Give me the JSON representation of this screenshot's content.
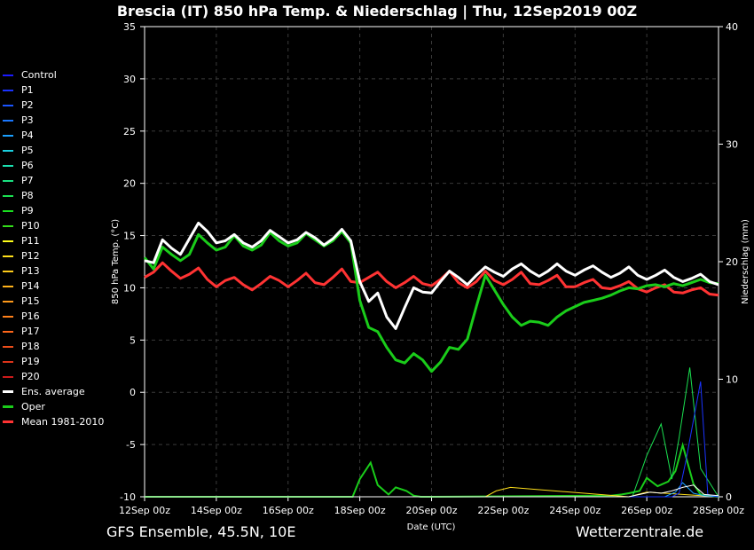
{
  "title": "Brescia  (IT)  850 hPa Temp. & Niederschlag | Thu, 12Sep2019 00Z",
  "footer": {
    "left": "GFS Ensemble, 45.5N, 10E",
    "right": "Wetterzentrale.de"
  },
  "chart_data": {
    "type": "line",
    "title": "Brescia  (IT)  850 hPa Temp. & Niederschlag | Thu, 12Sep2019 00Z",
    "xlabel": "Date (UTC)",
    "ylabel": "850 hPa Temp. (°C)",
    "y2label": "Niederschlag (mm)",
    "xlim": [
      0,
      16
    ],
    "ylim": [
      -10,
      35
    ],
    "y2lim": [
      0,
      40
    ],
    "grid": true,
    "legend_position": "left",
    "x_ticks": [
      {
        "value": 0,
        "label": "12Sep 00z"
      },
      {
        "value": 2,
        "label": "14Sep 00z"
      },
      {
        "value": 4,
        "label": "16Sep 00z"
      },
      {
        "value": 6,
        "label": "18Sep 00z"
      },
      {
        "value": 8,
        "label": "20Sep 00z"
      },
      {
        "value": 10,
        "label": "22Sep 00z"
      },
      {
        "value": 12,
        "label": "24Sep 00z"
      },
      {
        "value": 14,
        "label": "26Sep 00z"
      },
      {
        "value": 16,
        "label": "28Sep 00z"
      }
    ],
    "y_ticks": [
      -10,
      -5,
      0,
      5,
      10,
      15,
      20,
      25,
      30,
      35
    ],
    "y2_ticks": [
      0,
      10,
      20,
      30,
      40
    ],
    "legend": [
      {
        "label": "Control",
        "color": "#1a1aff"
      },
      {
        "label": "P1",
        "color": "#1a33ff"
      },
      {
        "label": "P2",
        "color": "#1a55ff"
      },
      {
        "label": "P3",
        "color": "#1a77ff"
      },
      {
        "label": "P4",
        "color": "#1aa0ff"
      },
      {
        "label": "P5",
        "color": "#1ad0e0"
      },
      {
        "label": "P6",
        "color": "#1ae0b0"
      },
      {
        "label": "P7",
        "color": "#1ae080"
      },
      {
        "label": "P8",
        "color": "#1ae050"
      },
      {
        "label": "P9",
        "color": "#1ae020"
      },
      {
        "label": "P10",
        "color": "#33dd1a"
      },
      {
        "label": "P11",
        "color": "#ffff1a"
      },
      {
        "label": "P12",
        "color": "#ffe01a"
      },
      {
        "label": "P13",
        "color": "#ffcc1a"
      },
      {
        "label": "P14",
        "color": "#ffb31a"
      },
      {
        "label": "P15",
        "color": "#ff991a"
      },
      {
        "label": "P16",
        "color": "#ff801a"
      },
      {
        "label": "P17",
        "color": "#ff661a"
      },
      {
        "label": "P18",
        "color": "#ee4d1a"
      },
      {
        "label": "P19",
        "color": "#dd331a"
      },
      {
        "label": "P20",
        "color": "#cc1a1a"
      },
      {
        "label": "Ens. average",
        "color": "#ffffff"
      },
      {
        "label": "Oper",
        "color": "#1acc1a"
      },
      {
        "label": "Mean 1981-2010",
        "color": "#ff3333"
      }
    ],
    "x": [
      0,
      0.25,
      0.5,
      0.75,
      1,
      1.25,
      1.5,
      1.75,
      2,
      2.25,
      2.5,
      2.75,
      3,
      3.25,
      3.5,
      3.75,
      4,
      4.25,
      4.5,
      4.75,
      5,
      5.25,
      5.5,
      5.75,
      6,
      6.25,
      6.5,
      6.75,
      7,
      7.25,
      7.5,
      7.75,
      8,
      8.25,
      8.5,
      8.75,
      9,
      9.25,
      9.5,
      9.75,
      10,
      10.25,
      10.5,
      10.75,
      11,
      11.25,
      11.5,
      11.75,
      12,
      12.25,
      12.5,
      12.75,
      13,
      13.25,
      13.5,
      13.75,
      14,
      14.25,
      14.5,
      14.75,
      15,
      15.25,
      15.5,
      15.75,
      16
    ],
    "series": [
      {
        "name": "Ens. average",
        "color": "#ffffff",
        "values": [
          12.6,
          12.4,
          14.6,
          13.8,
          13.2,
          14.7,
          16.2,
          15.4,
          14.3,
          14.5,
          15.1,
          14.3,
          13.9,
          14.5,
          15.5,
          14.9,
          14.3,
          14.6,
          15.3,
          14.8,
          14.1,
          14.7,
          15.6,
          14.5,
          10.6,
          8.7,
          9.5,
          7.2,
          6.1,
          8.1,
          10.0,
          9.6,
          9.5,
          10.6,
          11.6,
          11.0,
          10.3,
          11.2,
          12.0,
          11.5,
          11.1,
          11.8,
          12.3,
          11.6,
          11.1,
          11.6,
          12.3,
          11.6,
          11.2,
          11.7,
          12.1,
          11.5,
          11.0,
          11.4,
          12.0,
          11.2,
          10.8,
          11.2,
          11.7,
          11.0,
          10.6,
          10.9,
          11.3,
          10.6,
          10.3
        ]
      },
      {
        "name": "Oper",
        "color": "#1acc1a",
        "values": [
          12.9,
          11.8,
          13.9,
          13.2,
          12.6,
          13.2,
          15.1,
          14.3,
          13.6,
          13.9,
          15.0,
          14.0,
          13.6,
          14.1,
          15.3,
          14.5,
          14.0,
          14.3,
          15.2,
          14.6,
          14.0,
          14.5,
          15.4,
          14.3,
          8.8,
          6.2,
          5.8,
          4.3,
          3.1,
          2.8,
          3.7,
          3.1,
          2.0,
          2.9,
          4.3,
          4.1,
          5.1,
          8.2,
          11.2,
          9.8,
          8.4,
          7.2,
          6.4,
          6.8,
          6.7,
          6.4,
          7.2,
          7.8,
          8.2,
          8.6,
          8.8,
          9.0,
          9.3,
          9.7,
          10.0,
          9.9,
          10.2,
          10.3,
          10.1,
          10.4,
          10.2,
          10.5,
          10.8,
          10.5,
          10.4
        ]
      },
      {
        "name": "Mean 1981-2010",
        "color": "#ff3333",
        "values": [
          11.0,
          11.5,
          12.4,
          11.6,
          10.9,
          11.3,
          11.9,
          10.8,
          10.1,
          10.7,
          11.0,
          10.3,
          9.8,
          10.4,
          11.1,
          10.7,
          10.1,
          10.7,
          11.4,
          10.5,
          10.3,
          11.0,
          11.8,
          10.6,
          10.5,
          11.0,
          11.5,
          10.6,
          10.0,
          10.5,
          11.1,
          10.4,
          10.2,
          10.8,
          11.6,
          10.5,
          10.0,
          10.6,
          11.6,
          10.7,
          10.3,
          10.8,
          11.5,
          10.4,
          10.3,
          10.7,
          11.2,
          10.1,
          10.1,
          10.5,
          10.8,
          10.0,
          9.9,
          10.2,
          10.6,
          9.9,
          9.6,
          10.0,
          10.3,
          9.6,
          9.5,
          9.8,
          10.0,
          9.4,
          9.3
        ]
      }
    ],
    "precipitation": [
      {
        "name": "Oper",
        "color": "#1acc1a",
        "x": [
          0,
          5.8,
          6.0,
          6.3,
          6.5,
          6.8,
          7.0,
          7.3,
          7.5,
          7.7,
          8.0,
          13.0,
          13.3,
          13.5,
          13.8,
          14.0,
          14.3,
          14.6,
          14.8,
          15.0,
          15.3,
          15.5,
          16.0
        ],
        "values": [
          0,
          0,
          1.5,
          2.9,
          1.0,
          0.2,
          0.8,
          0.5,
          0.1,
          0,
          0,
          0.1,
          0.2,
          0.3,
          0.5,
          1.6,
          0.9,
          1.3,
          2.2,
          4.4,
          1.1,
          0.2,
          0
        ]
      },
      {
        "name": "P12",
        "color": "#ffe01a",
        "x": [
          0,
          9.5,
          9.8,
          10.2,
          13.5,
          14.0,
          16.0
        ],
        "values": [
          0,
          0,
          0.5,
          0.8,
          0,
          0.4,
          0
        ]
      },
      {
        "name": "P4",
        "color": "#1aa0ff",
        "x": [
          0,
          14.5,
          14.8,
          15.0,
          15.3,
          15.6,
          16.0
        ],
        "values": [
          0,
          0,
          0.4,
          1.2,
          0.3,
          0.1,
          0
        ]
      },
      {
        "name": "P8",
        "color": "#1ae050",
        "x": [
          0,
          13.6,
          14.0,
          14.4,
          14.7,
          14.9,
          15.2,
          15.5,
          16.0
        ],
        "values": [
          0,
          0,
          3.5,
          6.2,
          1.5,
          5.0,
          11.0,
          2.4,
          0
        ]
      },
      {
        "name": "P1",
        "color": "#1a33ff",
        "x": [
          0,
          14.7,
          14.9,
          15.1,
          15.3,
          15.5,
          15.7,
          16.0
        ],
        "values": [
          0,
          0,
          0.3,
          3.2,
          6.5,
          9.8,
          0.2,
          0
        ]
      },
      {
        "name": "Ens. average",
        "color": "#ffffff",
        "x": [
          0,
          13.5,
          13.8,
          14.1,
          14.4,
          14.7,
          15.0,
          15.3,
          15.6,
          16.0
        ],
        "values": [
          0,
          0,
          0.2,
          0.4,
          0.3,
          0.5,
          0.8,
          1.0,
          0.2,
          0.1
        ]
      }
    ]
  }
}
